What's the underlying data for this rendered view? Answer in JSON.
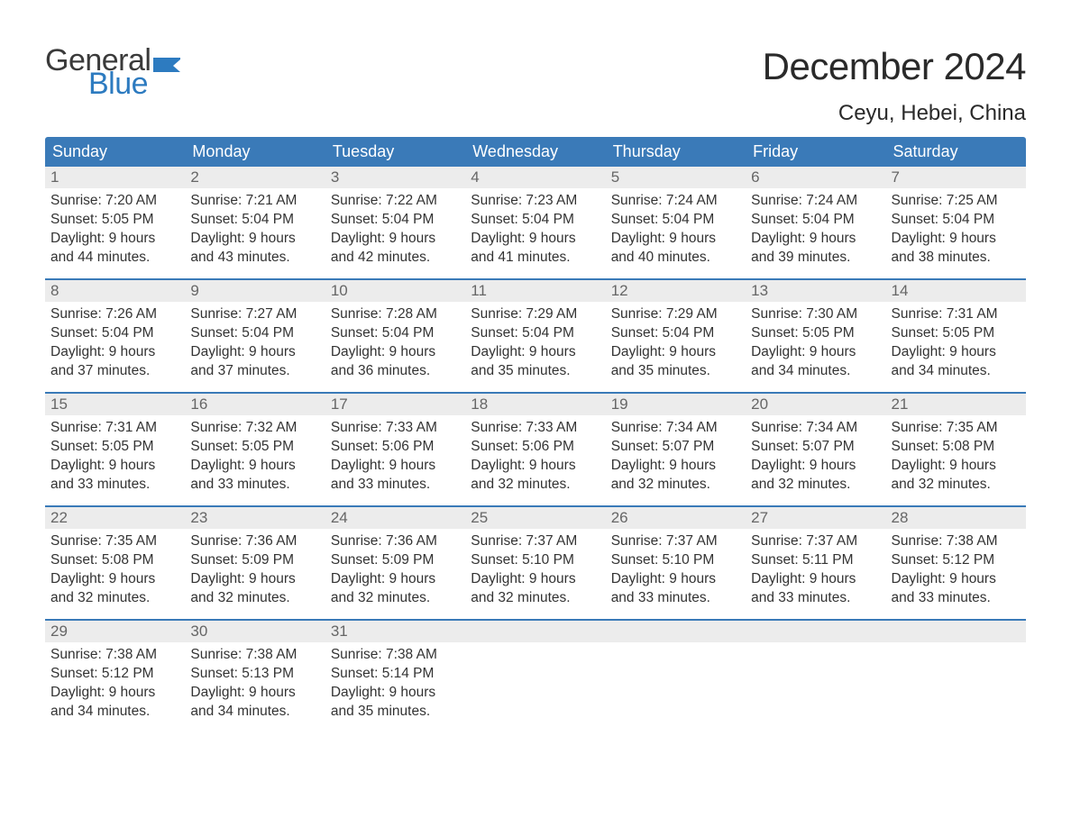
{
  "logo": {
    "word1": "General",
    "word2": "Blue",
    "flag_color": "#2d7bc0"
  },
  "header": {
    "month_title": "December 2024",
    "location": "Ceyu, Hebei, China"
  },
  "styling": {
    "header_bg": "#3a7ab8",
    "header_text": "#ffffff",
    "daynum_bg": "#ececec",
    "daynum_color": "#666666",
    "body_text": "#333333",
    "week_border": "#3a7ab8",
    "page_bg": "#ffffff",
    "month_title_fontsize": 42,
    "location_fontsize": 24,
    "header_fontsize": 18,
    "body_fontsize": 15.5
  },
  "day_headers": [
    "Sunday",
    "Monday",
    "Tuesday",
    "Wednesday",
    "Thursday",
    "Friday",
    "Saturday"
  ],
  "weeks": [
    [
      {
        "n": "1",
        "sr": "Sunrise: 7:20 AM",
        "ss": "Sunset: 5:05 PM",
        "d1": "Daylight: 9 hours",
        "d2": "and 44 minutes."
      },
      {
        "n": "2",
        "sr": "Sunrise: 7:21 AM",
        "ss": "Sunset: 5:04 PM",
        "d1": "Daylight: 9 hours",
        "d2": "and 43 minutes."
      },
      {
        "n": "3",
        "sr": "Sunrise: 7:22 AM",
        "ss": "Sunset: 5:04 PM",
        "d1": "Daylight: 9 hours",
        "d2": "and 42 minutes."
      },
      {
        "n": "4",
        "sr": "Sunrise: 7:23 AM",
        "ss": "Sunset: 5:04 PM",
        "d1": "Daylight: 9 hours",
        "d2": "and 41 minutes."
      },
      {
        "n": "5",
        "sr": "Sunrise: 7:24 AM",
        "ss": "Sunset: 5:04 PM",
        "d1": "Daylight: 9 hours",
        "d2": "and 40 minutes."
      },
      {
        "n": "6",
        "sr": "Sunrise: 7:24 AM",
        "ss": "Sunset: 5:04 PM",
        "d1": "Daylight: 9 hours",
        "d2": "and 39 minutes."
      },
      {
        "n": "7",
        "sr": "Sunrise: 7:25 AM",
        "ss": "Sunset: 5:04 PM",
        "d1": "Daylight: 9 hours",
        "d2": "and 38 minutes."
      }
    ],
    [
      {
        "n": "8",
        "sr": "Sunrise: 7:26 AM",
        "ss": "Sunset: 5:04 PM",
        "d1": "Daylight: 9 hours",
        "d2": "and 37 minutes."
      },
      {
        "n": "9",
        "sr": "Sunrise: 7:27 AM",
        "ss": "Sunset: 5:04 PM",
        "d1": "Daylight: 9 hours",
        "d2": "and 37 minutes."
      },
      {
        "n": "10",
        "sr": "Sunrise: 7:28 AM",
        "ss": "Sunset: 5:04 PM",
        "d1": "Daylight: 9 hours",
        "d2": "and 36 minutes."
      },
      {
        "n": "11",
        "sr": "Sunrise: 7:29 AM",
        "ss": "Sunset: 5:04 PM",
        "d1": "Daylight: 9 hours",
        "d2": "and 35 minutes."
      },
      {
        "n": "12",
        "sr": "Sunrise: 7:29 AM",
        "ss": "Sunset: 5:04 PM",
        "d1": "Daylight: 9 hours",
        "d2": "and 35 minutes."
      },
      {
        "n": "13",
        "sr": "Sunrise: 7:30 AM",
        "ss": "Sunset: 5:05 PM",
        "d1": "Daylight: 9 hours",
        "d2": "and 34 minutes."
      },
      {
        "n": "14",
        "sr": "Sunrise: 7:31 AM",
        "ss": "Sunset: 5:05 PM",
        "d1": "Daylight: 9 hours",
        "d2": "and 34 minutes."
      }
    ],
    [
      {
        "n": "15",
        "sr": "Sunrise: 7:31 AM",
        "ss": "Sunset: 5:05 PM",
        "d1": "Daylight: 9 hours",
        "d2": "and 33 minutes."
      },
      {
        "n": "16",
        "sr": "Sunrise: 7:32 AM",
        "ss": "Sunset: 5:05 PM",
        "d1": "Daylight: 9 hours",
        "d2": "and 33 minutes."
      },
      {
        "n": "17",
        "sr": "Sunrise: 7:33 AM",
        "ss": "Sunset: 5:06 PM",
        "d1": "Daylight: 9 hours",
        "d2": "and 33 minutes."
      },
      {
        "n": "18",
        "sr": "Sunrise: 7:33 AM",
        "ss": "Sunset: 5:06 PM",
        "d1": "Daylight: 9 hours",
        "d2": "and 32 minutes."
      },
      {
        "n": "19",
        "sr": "Sunrise: 7:34 AM",
        "ss": "Sunset: 5:07 PM",
        "d1": "Daylight: 9 hours",
        "d2": "and 32 minutes."
      },
      {
        "n": "20",
        "sr": "Sunrise: 7:34 AM",
        "ss": "Sunset: 5:07 PM",
        "d1": "Daylight: 9 hours",
        "d2": "and 32 minutes."
      },
      {
        "n": "21",
        "sr": "Sunrise: 7:35 AM",
        "ss": "Sunset: 5:08 PM",
        "d1": "Daylight: 9 hours",
        "d2": "and 32 minutes."
      }
    ],
    [
      {
        "n": "22",
        "sr": "Sunrise: 7:35 AM",
        "ss": "Sunset: 5:08 PM",
        "d1": "Daylight: 9 hours",
        "d2": "and 32 minutes."
      },
      {
        "n": "23",
        "sr": "Sunrise: 7:36 AM",
        "ss": "Sunset: 5:09 PM",
        "d1": "Daylight: 9 hours",
        "d2": "and 32 minutes."
      },
      {
        "n": "24",
        "sr": "Sunrise: 7:36 AM",
        "ss": "Sunset: 5:09 PM",
        "d1": "Daylight: 9 hours",
        "d2": "and 32 minutes."
      },
      {
        "n": "25",
        "sr": "Sunrise: 7:37 AM",
        "ss": "Sunset: 5:10 PM",
        "d1": "Daylight: 9 hours",
        "d2": "and 32 minutes."
      },
      {
        "n": "26",
        "sr": "Sunrise: 7:37 AM",
        "ss": "Sunset: 5:10 PM",
        "d1": "Daylight: 9 hours",
        "d2": "and 33 minutes."
      },
      {
        "n": "27",
        "sr": "Sunrise: 7:37 AM",
        "ss": "Sunset: 5:11 PM",
        "d1": "Daylight: 9 hours",
        "d2": "and 33 minutes."
      },
      {
        "n": "28",
        "sr": "Sunrise: 7:38 AM",
        "ss": "Sunset: 5:12 PM",
        "d1": "Daylight: 9 hours",
        "d2": "and 33 minutes."
      }
    ],
    [
      {
        "n": "29",
        "sr": "Sunrise: 7:38 AM",
        "ss": "Sunset: 5:12 PM",
        "d1": "Daylight: 9 hours",
        "d2": "and 34 minutes."
      },
      {
        "n": "30",
        "sr": "Sunrise: 7:38 AM",
        "ss": "Sunset: 5:13 PM",
        "d1": "Daylight: 9 hours",
        "d2": "and 34 minutes."
      },
      {
        "n": "31",
        "sr": "Sunrise: 7:38 AM",
        "ss": "Sunset: 5:14 PM",
        "d1": "Daylight: 9 hours",
        "d2": "and 35 minutes."
      },
      null,
      null,
      null,
      null
    ]
  ]
}
